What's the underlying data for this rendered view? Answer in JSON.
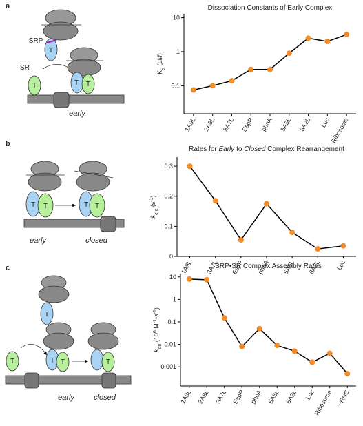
{
  "chart_data": [
    {
      "type": "line",
      "title": "Dissociation Constants of Early Complex",
      "y_label": [
        {
          "text": "K",
          "style": "normal"
        },
        {
          "text": "d",
          "style": "sub"
        },
        {
          "text": " (",
          "style": "normal"
        },
        {
          "text": "μM",
          "style": "italic"
        },
        {
          "text": ")",
          "style": "normal"
        }
      ],
      "categories": [
        "1A9L",
        "2A8L",
        "3A7L",
        "EspP",
        "phoA",
        "5A5L",
        "8A2L",
        "Luc",
        "Ribosome"
      ],
      "category_colors": [
        "#222",
        "#222",
        "#222",
        "#d9822b",
        "#222",
        "#222",
        "#222",
        "#222",
        "#222"
      ],
      "values": [
        0.075,
        0.1,
        0.14,
        0.3,
        0.3,
        0.9,
        2.5,
        2,
        3.2
      ],
      "log_scale": true,
      "ylim": [
        0.015,
        13
      ],
      "yticks": [
        0.1,
        1,
        10
      ],
      "line_color": "#000000",
      "marker_color": "#f28c28"
    },
    {
      "type": "line",
      "title": [
        {
          "text": "Rates for ",
          "style": "normal"
        },
        {
          "text": "Early",
          "style": "italic"
        },
        {
          "text": " to ",
          "style": "normal"
        },
        {
          "text": "Closed",
          "style": "italic"
        },
        {
          "text": " Complex Rearrangement",
          "style": "normal"
        }
      ],
      "y_label": [
        {
          "text": "k",
          "style": "italic"
        },
        {
          "text": "c-c",
          "style": "sub"
        },
        {
          "text": " (s",
          "style": "normal"
        },
        {
          "text": "-1",
          "style": "sup"
        },
        {
          "text": ")",
          "style": "normal"
        }
      ],
      "categories": [
        "1A9L",
        "3A7L",
        "EspP",
        "phoA",
        "5A5L",
        "8A2L",
        "Luc"
      ],
      "category_colors": [
        "#222",
        "#222",
        "#d9822b",
        "#222",
        "#222",
        "#222",
        "#222"
      ],
      "values": [
        0.3,
        0.185,
        0.055,
        0.175,
        0.08,
        0.025,
        0.035
      ],
      "log_scale": false,
      "ylim": [
        0,
        0.33
      ],
      "yticks": [
        0,
        0.1,
        0.2,
        0.3
      ],
      "line_color": "#000000",
      "marker_color": "#f28c28"
    },
    {
      "type": "line",
      "title": "SRP•SR Complex Assembly Rates",
      "y_label": [
        {
          "text": "k",
          "style": "italic"
        },
        {
          "text": "on",
          "style": "sub"
        },
        {
          "text": " (10",
          "style": "normal"
        },
        {
          "text": "6",
          "style": "sup"
        },
        {
          "text": " M",
          "style": "normal"
        },
        {
          "text": "-1",
          "style": "sup"
        },
        {
          "text": "•s",
          "style": "normal"
        },
        {
          "text": "-1",
          "style": "sup"
        },
        {
          "text": ")",
          "style": "normal"
        }
      ],
      "categories": [
        "1A9L",
        "2A8L",
        "3A7L",
        "EspP",
        "phoA",
        "5A5L",
        "8A2L",
        "Luc",
        "Ribosome",
        "−RNC"
      ],
      "category_colors": [
        "#222",
        "#222",
        "#222",
        "#d9822b",
        "#222",
        "#222",
        "#222",
        "#222",
        "#222",
        "#222"
      ],
      "values": [
        8,
        7.5,
        0.15,
        0.008,
        0.05,
        0.009,
        0.005,
        0.0016,
        0.004,
        0.0005
      ],
      "log_scale": true,
      "ylim": [
        0.00014,
        14
      ],
      "yticks": [
        0.001,
        0.01,
        0.1,
        1,
        10
      ],
      "line_color": "#000000",
      "marker_color": "#f28c28"
    }
  ],
  "figure": {
    "panels": [
      {
        "label": "a",
        "texts": [
          "SRP",
          "SR",
          "T",
          "T",
          "T",
          "T",
          "early"
        ]
      },
      {
        "label": "b",
        "texts": [
          "T",
          "T",
          "T",
          "T",
          "early",
          "closed"
        ]
      },
      {
        "label": "c",
        "texts": [
          "T",
          "T",
          "T",
          "T",
          "T",
          "early",
          "closed"
        ]
      }
    ]
  }
}
